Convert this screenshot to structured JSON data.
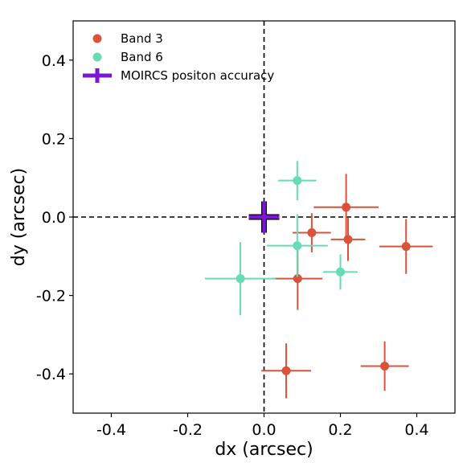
{
  "chart_data": {
    "type": "scatter",
    "title": "",
    "xlabel": "dx (arcsec)",
    "ylabel": "dy (arcsec)",
    "xlim": [
      -0.5,
      0.5
    ],
    "ylim": [
      -0.5,
      0.5
    ],
    "xticks": [
      -0.4,
      -0.2,
      0.0,
      0.2,
      0.4
    ],
    "yticks": [
      -0.4,
      -0.2,
      0.0,
      0.2,
      0.4
    ],
    "xtick_labels": [
      "-0.4",
      "-0.2",
      "0.0",
      "0.2",
      "0.4"
    ],
    "ytick_labels": [
      "-0.4",
      "-0.2",
      "0.0",
      "0.2",
      "0.4"
    ],
    "grid": false,
    "reference_lines": {
      "x": 0,
      "y": 0,
      "style": "dashed"
    },
    "legend_position": "top-left",
    "series": [
      {
        "name": "Band 3",
        "color": "#d9533a",
        "marker": "circle",
        "points": [
          {
            "x": 0.215,
            "y": 0.025,
            "xerr": 0.085,
            "yerr": 0.085
          },
          {
            "x": 0.125,
            "y": -0.04,
            "xerr": 0.05,
            "yerr": 0.05
          },
          {
            "x": 0.22,
            "y": -0.057,
            "xerr": 0.045,
            "yerr": 0.055
          },
          {
            "x": 0.372,
            "y": -0.075,
            "xerr": 0.07,
            "yerr": 0.07
          },
          {
            "x": 0.088,
            "y": -0.157,
            "xerr": 0.065,
            "yerr": 0.08
          },
          {
            "x": 0.058,
            "y": -0.392,
            "xerr": 0.065,
            "yerr": 0.07
          },
          {
            "x": 0.316,
            "y": -0.38,
            "xerr": 0.063,
            "yerr": 0.063
          }
        ]
      },
      {
        "name": "Band 6",
        "color": "#66dbb6",
        "marker": "circle",
        "points": [
          {
            "x": 0.087,
            "y": 0.093,
            "xerr": 0.05,
            "yerr": 0.05
          },
          {
            "x": 0.087,
            "y": -0.073,
            "xerr": 0.08,
            "yerr": 0.08
          },
          {
            "x": 0.2,
            "y": -0.14,
            "xerr": 0.045,
            "yerr": 0.045
          },
          {
            "x": -0.062,
            "y": -0.157,
            "xerr": 0.093,
            "yerr": 0.093
          }
        ]
      },
      {
        "name": "MOIRCS positon accuracy",
        "color": "#7a17d6",
        "marker": "cross",
        "points": [
          {
            "x": 0.0,
            "y": 0.0,
            "xerr": 0.04,
            "yerr": 0.04
          }
        ]
      }
    ]
  }
}
